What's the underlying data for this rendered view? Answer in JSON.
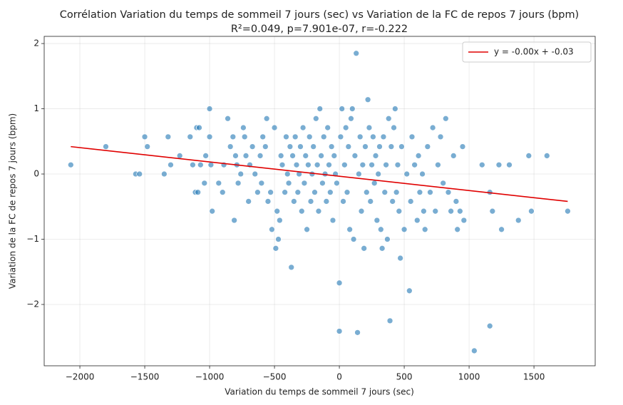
{
  "chart_data": {
    "type": "scatter",
    "title": "Corrélation Variation du temps de sommeil 7 jours (sec) vs Variation de la FC de repos 7 jours (bpm)",
    "subtitle": "R²=0.049, p=7.901e-07, r=-0.222",
    "x_label": "Variation du temps de sommeil 7 jours (sec)",
    "y_label": "Variation de la FC de repos 7 jours (bpm)",
    "color": "#1f77b4",
    "x": [
      -2070,
      -1800,
      -1570,
      -1540,
      -1500,
      -1480,
      -1350,
      -1320,
      -1300,
      -1230,
      -1150,
      -1130,
      -1110,
      -1100,
      -1080,
      -1090,
      -1070,
      -1040,
      -1030,
      -1000,
      -1000,
      -990,
      -980,
      -930,
      -900,
      -890,
      -860,
      -840,
      -820,
      -810,
      -800,
      -790,
      -780,
      -760,
      -740,
      -730,
      -720,
      -700,
      -690,
      -670,
      -650,
      -630,
      -610,
      -600,
      -590,
      -570,
      -560,
      -550,
      -530,
      -520,
      -500,
      -490,
      -480,
      -470,
      -460,
      -450,
      -440,
      -420,
      -410,
      -400,
      -390,
      -380,
      -370,
      -360,
      -350,
      -340,
      -330,
      -320,
      -310,
      -300,
      -290,
      -280,
      -270,
      -260,
      -250,
      -240,
      -230,
      -220,
      -210,
      -200,
      -190,
      -180,
      -170,
      -160,
      -150,
      -140,
      -130,
      -120,
      -110,
      -100,
      -90,
      -80,
      -70,
      -60,
      -50,
      -40,
      -30,
      -20,
      0,
      0,
      10,
      20,
      30,
      40,
      50,
      60,
      70,
      80,
      90,
      100,
      110,
      120,
      130,
      140,
      150,
      160,
      170,
      180,
      190,
      200,
      210,
      220,
      230,
      240,
      250,
      260,
      270,
      280,
      290,
      300,
      310,
      320,
      330,
      340,
      350,
      360,
      370,
      380,
      390,
      400,
      410,
      420,
      430,
      440,
      450,
      460,
      470,
      480,
      500,
      520,
      540,
      550,
      560,
      580,
      600,
      610,
      620,
      640,
      650,
      660,
      680,
      700,
      720,
      740,
      760,
      780,
      800,
      820,
      840,
      860,
      880,
      900,
      910,
      930,
      950,
      960,
      1040,
      1100,
      1160,
      1160,
      1180,
      1230,
      1250,
      1310,
      1380,
      1460,
      1480,
      1600,
      1760
    ],
    "values": [
      0.14,
      0.42,
      0,
      0,
      0.57,
      0.42,
      0,
      0.57,
      0.14,
      0.28,
      0.57,
      0.14,
      -0.28,
      0.71,
      0.71,
      -0.28,
      0.14,
      -0.14,
      0.28,
      1.0,
      0.57,
      0.14,
      -0.57,
      -0.14,
      -0.28,
      0.14,
      0.85,
      0.42,
      0.57,
      -0.71,
      0.28,
      0.14,
      -0.14,
      0,
      0.71,
      0.57,
      0.28,
      -0.42,
      0.14,
      0.42,
      0,
      -0.28,
      0.28,
      -0.14,
      0.57,
      0.42,
      0.85,
      -0.42,
      -0.28,
      -0.85,
      0.71,
      -1.14,
      -0.57,
      -1.0,
      -0.71,
      0.28,
      0.14,
      -0.28,
      0.57,
      0,
      -0.14,
      0.42,
      -1.43,
      0.28,
      -0.42,
      0.57,
      0.14,
      -0.28,
      0,
      0.42,
      -0.57,
      0.71,
      -0.14,
      0.28,
      -0.85,
      0.14,
      0.57,
      -0.42,
      0,
      0.42,
      -0.28,
      0.85,
      0.14,
      -0.57,
      1.0,
      0.28,
      -0.14,
      0.57,
      0,
      -0.42,
      0.71,
      0.14,
      -0.28,
      0.42,
      -0.71,
      0.28,
      0,
      -0.14,
      -1.67,
      -2.41,
      0.57,
      1.0,
      -0.42,
      0.14,
      0.71,
      -0.28,
      0.42,
      -0.85,
      0.85,
      1.0,
      -1.0,
      0.28,
      1.85,
      -2.43,
      0,
      0.57,
      -0.57,
      0.14,
      -1.14,
      0.42,
      -0.28,
      1.14,
      0.71,
      -0.42,
      0.14,
      0.57,
      -0.14,
      0.28,
      -0.71,
      0,
      0.42,
      -0.85,
      -1.14,
      0.57,
      -0.28,
      0.14,
      -1.0,
      0.85,
      -2.25,
      0.42,
      -0.42,
      0.71,
      1.0,
      -0.28,
      0.14,
      -0.57,
      -1.29,
      0.42,
      -0.85,
      0,
      -1.79,
      -0.42,
      0.57,
      0.14,
      -0.71,
      0.28,
      -0.28,
      0,
      -0.57,
      -0.85,
      0.42,
      -0.28,
      0.71,
      -0.57,
      0.14,
      0.57,
      -0.14,
      0.85,
      -0.28,
      -0.57,
      0.28,
      -0.42,
      -0.85,
      -0.57,
      0.42,
      -0.71,
      -2.71,
      0.14,
      -0.28,
      -2.33,
      -0.57,
      0.14,
      -0.85,
      0.14,
      -0.71,
      0.28,
      -0.57,
      0.28,
      -0.57
    ],
    "fit": {
      "name": "y = -0.00x + -0.03",
      "color": "#e00000",
      "x": [
        -2070,
        1760
      ],
      "values": [
        0.42,
        -0.42
      ]
    },
    "xlim": [
      -2275,
      1972
    ],
    "ylim": [
      -2.94,
      2.11
    ],
    "xticks": [
      {
        "value": -2000,
        "label": "−2000"
      },
      {
        "value": -1500,
        "label": "−1500"
      },
      {
        "value": -1000,
        "label": "−1000"
      },
      {
        "value": -500,
        "label": "−500"
      },
      0,
      500,
      1000,
      1500
    ],
    "yticks": [
      {
        "value": -2,
        "label": "−2"
      },
      {
        "value": -1,
        "label": "−1"
      },
      0,
      1,
      2
    ],
    "grid": true,
    "legend": "upper-right"
  }
}
